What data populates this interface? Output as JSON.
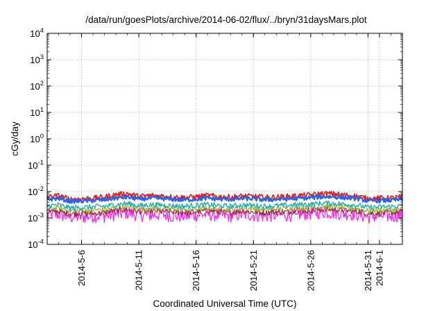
{
  "chart_data": {
    "type": "line",
    "title": "/data/run/goesPlots/archive/2014-06-02/flux/../bryn/31daysMars.plot",
    "xlabel": "Coordinated Universal Time (UTC)",
    "ylabel": "cGy/day",
    "y_scale": "log",
    "ylim": [
      0.0001,
      10000
    ],
    "y_ticks": [
      {
        "base": "10",
        "exp": "-4"
      },
      {
        "base": "10",
        "exp": "-3"
      },
      {
        "base": "10",
        "exp": "-2"
      },
      {
        "base": "10",
        "exp": "-1"
      },
      {
        "base": "10",
        "exp": "0"
      },
      {
        "base": "10",
        "exp": "1"
      },
      {
        "base": "10",
        "exp": "2"
      },
      {
        "base": "10",
        "exp": "3"
      },
      {
        "base": "10",
        "exp": "4"
      }
    ],
    "xlim": [
      "2014-05-03",
      "2014-06-03"
    ],
    "x_tick_labels": [
      "2014-5-6",
      "2014-5-11",
      "2014-5-16",
      "2014-5-21",
      "2014-5-26",
      "2014-5-31",
      "2014-6-1"
    ],
    "x_tick_dates": [
      "2014-05-06",
      "2014-05-11",
      "2014-05-16",
      "2014-05-21",
      "2014-05-26",
      "2014-05-31",
      "2014-06-01"
    ],
    "grid": true,
    "series_daily_approx": {
      "dates": [
        "2014-05-03",
        "2014-05-04",
        "2014-05-05",
        "2014-05-06",
        "2014-05-07",
        "2014-05-08",
        "2014-05-09",
        "2014-05-10",
        "2014-05-11",
        "2014-05-12",
        "2014-05-13",
        "2014-05-14",
        "2014-05-15",
        "2014-05-16",
        "2014-05-17",
        "2014-05-18",
        "2014-05-19",
        "2014-05-20",
        "2014-05-21",
        "2014-05-22",
        "2014-05-23",
        "2014-05-24",
        "2014-05-25",
        "2014-05-26",
        "2014-05-27",
        "2014-05-28",
        "2014-05-29",
        "2014-05-30",
        "2014-05-31",
        "2014-06-01",
        "2014-06-02",
        "2014-06-03"
      ],
      "series": [
        {
          "color": "#e8191b",
          "values": [
            0.0062,
            0.0071,
            0.0052,
            0.0054,
            0.0057,
            0.0063,
            0.0078,
            0.0085,
            0.0066,
            0.0072,
            0.0069,
            0.0063,
            0.0061,
            0.0064,
            0.0072,
            0.0065,
            0.0063,
            0.0068,
            0.0067,
            0.0061,
            0.0063,
            0.0066,
            0.0071,
            0.0075,
            0.0084,
            0.0083,
            0.0074,
            0.0068,
            0.0055,
            0.0057,
            0.0058,
            0.0063
          ]
        },
        {
          "color": "#2e63e6",
          "values": [
            0.0052,
            0.0056,
            0.0043,
            0.0044,
            0.0046,
            0.0049,
            0.0057,
            0.0062,
            0.0052,
            0.0057,
            0.0055,
            0.0051,
            0.0049,
            0.0052,
            0.0057,
            0.0052,
            0.0051,
            0.0055,
            0.0054,
            0.0049,
            0.0051,
            0.0053,
            0.0056,
            0.0059,
            0.0064,
            0.0064,
            0.0059,
            0.0055,
            0.0045,
            0.0046,
            0.0047,
            0.0052
          ]
        },
        {
          "color": "#20b2a0",
          "values": [
            0.0029,
            0.0031,
            0.0024,
            0.0025,
            0.0026,
            0.0028,
            0.0032,
            0.0036,
            0.0029,
            0.0032,
            0.0031,
            0.0029,
            0.0028,
            0.003,
            0.0032,
            0.0029,
            0.0028,
            0.0031,
            0.003,
            0.0028,
            0.0029,
            0.003,
            0.0032,
            0.0033,
            0.0036,
            0.0036,
            0.0033,
            0.0031,
            0.0025,
            0.0026,
            0.0027,
            0.0029
          ]
        },
        {
          "color": "#9aa81d",
          "values": [
            0.0022,
            0.0024,
            0.0019,
            0.0019,
            0.002,
            0.0021,
            0.0025,
            0.0027,
            0.0022,
            0.0024,
            0.0023,
            0.0022,
            0.0021,
            0.0022,
            0.0024,
            0.0022,
            0.0021,
            0.0023,
            0.0023,
            0.0021,
            0.0022,
            0.0023,
            0.0024,
            0.0025,
            0.0027,
            0.0027,
            0.0025,
            0.0023,
            0.0019,
            0.002,
            0.002,
            0.0022
          ]
        },
        {
          "color": "#8a2c2c",
          "values": [
            0.0017,
            0.0018,
            0.0014,
            0.0015,
            0.0015,
            0.0016,
            0.0019,
            0.0021,
            0.0017,
            0.0018,
            0.0018,
            0.0017,
            0.0016,
            0.0017,
            0.0019,
            0.0017,
            0.0016,
            0.0018,
            0.0017,
            0.0016,
            0.0017,
            0.0017,
            0.0018,
            0.0019,
            0.0021,
            0.0021,
            0.0019,
            0.0018,
            0.0015,
            0.0015,
            0.0016,
            0.0017
          ]
        },
        {
          "color": "#ff1cf0",
          "values": [
            0.0013,
            0.0014,
            0.0011,
            0.0011,
            0.0012,
            0.0012,
            0.0014,
            0.0016,
            0.0013,
            0.0013,
            0.0014,
            0.0012,
            0.0012,
            0.0013,
            0.0014,
            0.0013,
            0.0012,
            0.0014,
            0.0013,
            0.0012,
            0.0013,
            0.0013,
            0.0014,
            0.0015,
            0.0017,
            0.0016,
            0.0015,
            0.0014,
            0.0011,
            0.0012,
            0.0012,
            0.0013
          ]
        }
      ]
    }
  }
}
